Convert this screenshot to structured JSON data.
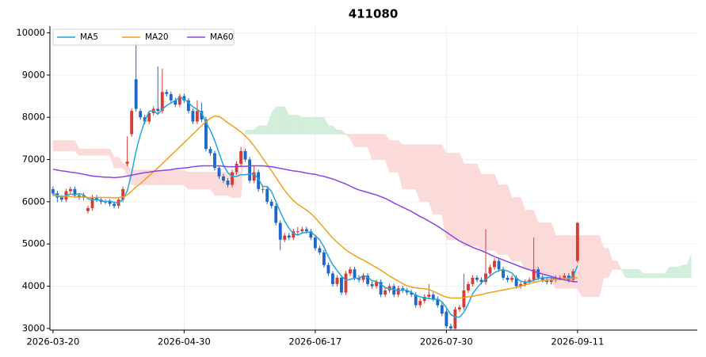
{
  "chart_data": {
    "type": "candlestick",
    "title": "411080",
    "xlim": [
      -0.7,
      147.4
    ],
    "xticks": [
      {
        "value": 0,
        "label": "2026-03-20"
      },
      {
        "value": 30,
        "label": "2026-04-30"
      },
      {
        "value": 60,
        "label": "2026-06-17"
      },
      {
        "value": 90,
        "label": "2026-07-30"
      },
      {
        "value": 120,
        "label": "2026-09-11"
      }
    ],
    "ylim": [
      2960,
      10160
    ],
    "yticks": [
      3000,
      4000,
      5000,
      6000,
      7000,
      8000,
      9000,
      10000
    ],
    "grid": true,
    "legend": "upper left",
    "up_color": "#d63c32",
    "down_color": "#2068c8",
    "open": [
      6300,
      6200,
      6100,
      6050,
      6250,
      6300,
      6150,
      6100,
      5780,
      5850,
      6100,
      6050,
      6000,
      6000,
      5950,
      5900,
      6050,
      6900,
      7600,
      8900,
      8150,
      8000,
      7900,
      8100,
      8200,
      8150,
      8600,
      8550,
      8400,
      8300,
      8500,
      8400,
      8150,
      7900,
      8150,
      7950,
      7250,
      7150,
      6800,
      6600,
      6500,
      6400,
      6700,
      6900,
      7200,
      7000,
      6500,
      6700,
      6300,
      6300,
      6000,
      5900,
      5500,
      5100,
      5200,
      5150,
      5300,
      5300,
      5350,
      5300,
      5150,
      4900,
      4800,
      4500,
      4300,
      4050,
      4200,
      3850,
      4300,
      4400,
      4200,
      4150,
      4250,
      4050,
      4000,
      4100,
      3800,
      3900,
      4000,
      3800,
      3950,
      3900,
      3850,
      3800,
      3550,
      3650,
      3750,
      3800,
      3700,
      3550,
      3400,
      3050,
      3000,
      3450,
      3500,
      3900,
      4050,
      4200,
      4150,
      4100,
      4300,
      4450,
      4600,
      4400,
      4200,
      4150,
      4200,
      4000,
      4050,
      4100,
      4150,
      4400,
      4200,
      4150,
      4100,
      4150,
      4200,
      4200,
      4250,
      4150,
      4600
    ],
    "high": [
      6360,
      6260,
      6160,
      6310,
      6360,
      6360,
      6210,
      6210,
      5910,
      6160,
      6160,
      6110,
      6060,
      6060,
      6010,
      6110,
      6360,
      7550,
      8210,
      9800,
      8210,
      8060,
      8160,
      8260,
      9200,
      9150,
      8660,
      8610,
      8460,
      8560,
      8560,
      8460,
      8210,
      8400,
      8350,
      8010,
      7310,
      7210,
      6860,
      6660,
      6560,
      6760,
      6960,
      7300,
      7260,
      7060,
      6860,
      6760,
      6400,
      6360,
      6060,
      5960,
      5560,
      5260,
      5260,
      5360,
      5400,
      5410,
      5410,
      5360,
      5210,
      4960,
      4860,
      4560,
      4360,
      4260,
      4260,
      4360,
      4460,
      4460,
      4260,
      4310,
      4310,
      4110,
      4160,
      4160,
      3960,
      4060,
      4060,
      4010,
      4010,
      3960,
      3910,
      3860,
      3710,
      3810,
      4050,
      3860,
      3760,
      3610,
      3460,
      3110,
      3510,
      3560,
      4300,
      4110,
      4260,
      4260,
      4210,
      5350,
      4510,
      4660,
      4660,
      4460,
      4260,
      4260,
      4260,
      4110,
      4160,
      4210,
      5150,
      4460,
      4260,
      4210,
      4210,
      4260,
      4260,
      4310,
      4310,
      4410,
      5520
    ],
    "low": [
      6140,
      5990,
      5990,
      5990,
      6190,
      6090,
      6040,
      6040,
      5720,
      5790,
      5990,
      5940,
      5940,
      5890,
      5840,
      5840,
      5990,
      6840,
      7540,
      8140,
      7940,
      7840,
      7840,
      8040,
      8090,
      8090,
      8490,
      8340,
      8240,
      8240,
      8340,
      8090,
      7840,
      7840,
      7890,
      7190,
      7090,
      6740,
      6540,
      6440,
      6340,
      6340,
      6640,
      6840,
      6940,
      6440,
      6440,
      6240,
      6200,
      5940,
      5840,
      5440,
      4850,
      5040,
      5090,
      5090,
      5200,
      5240,
      5240,
      5090,
      4840,
      4740,
      4440,
      4240,
      3990,
      3990,
      3790,
      3790,
      4240,
      4140,
      4090,
      4090,
      3990,
      3940,
      3940,
      3740,
      3740,
      3840,
      3740,
      3740,
      3840,
      3790,
      3740,
      3490,
      3490,
      3590,
      3690,
      3640,
      3490,
      3290,
      3000,
      2970,
      2970,
      3390,
      3440,
      3840,
      3990,
      4090,
      4040,
      4040,
      4240,
      4390,
      4340,
      4140,
      4090,
      4090,
      3940,
      3940,
      3990,
      4040,
      4090,
      4140,
      4090,
      4040,
      4040,
      4090,
      4140,
      4140,
      4090,
      4090,
      4550
    ],
    "close": [
      6200,
      6100,
      6050,
      6250,
      6300,
      6150,
      6100,
      6150,
      5850,
      6100,
      6050,
      6000,
      6000,
      5950,
      5900,
      6050,
      6300,
      6950,
      8150,
      8200,
      8000,
      7900,
      8100,
      8200,
      8150,
      8600,
      8550,
      8400,
      8300,
      8500,
      8400,
      8150,
      7900,
      8150,
      7950,
      7250,
      7150,
      6800,
      6600,
      6500,
      6400,
      6700,
      6900,
      7200,
      7000,
      6500,
      6700,
      6300,
      6300,
      6000,
      5900,
      5500,
      5100,
      5200,
      5150,
      5300,
      5300,
      5350,
      5300,
      5150,
      4900,
      4800,
      4500,
      4300,
      4050,
      4200,
      3850,
      4300,
      4400,
      4200,
      4150,
      4250,
      4050,
      4000,
      4100,
      3800,
      3900,
      4000,
      3800,
      3950,
      3900,
      3850,
      3800,
      3550,
      3650,
      3750,
      3800,
      3700,
      3550,
      3350,
      3050,
      3000,
      3450,
      3500,
      3900,
      4050,
      4200,
      4150,
      4100,
      4300,
      4450,
      4600,
      4400,
      4200,
      4150,
      4200,
      4000,
      4050,
      4100,
      4150,
      4400,
      4200,
      4150,
      4100,
      4150,
      4200,
      4200,
      4250,
      4150,
      4350,
      5500
    ],
    "series": [
      {
        "name": "MA5",
        "color": "#1ea6df",
        "values": [
          6200,
          6150,
          6100,
          6150,
          6180,
          6170,
          6190,
          6170,
          6070,
          6050,
          6050,
          6030,
          6000,
          6020,
          5980,
          5980,
          6050,
          6260,
          6680,
          7200,
          7590,
          7910,
          8140,
          8160,
          8070,
          8190,
          8280,
          8340,
          8400,
          8470,
          8430,
          8350,
          8250,
          8190,
          8110,
          7880,
          7690,
          7450,
          7150,
          6860,
          6690,
          6600,
          6600,
          6640,
          6640,
          6660,
          6660,
          6540,
          6360,
          6360,
          6240,
          6000,
          5760,
          5540,
          5370,
          5250,
          5210,
          5260,
          5280,
          5280,
          5200,
          5100,
          4930,
          4700,
          4510,
          4370,
          4240,
          4140,
          4160,
          4190,
          4180,
          4260,
          4210,
          4130,
          4110,
          4040,
          3970,
          3940,
          3920,
          3890,
          3910,
          3900,
          3860,
          3780,
          3750,
          3720,
          3710,
          3690,
          3690,
          3630,
          3490,
          3330,
          3270,
          3270,
          3380,
          3580,
          3820,
          3960,
          4080,
          4160,
          4240,
          4320,
          4370,
          4390,
          4360,
          4310,
          4190,
          4120,
          4100,
          4100,
          4140,
          4180,
          4200,
          4200,
          4200,
          4160,
          4160,
          4180,
          4190,
          4230,
          4490
        ]
      },
      {
        "name": "MA20",
        "color": "#f2a01a",
        "values": [
          6150,
          6140,
          6130,
          6130,
          6120,
          6120,
          6110,
          6110,
          6100,
          6100,
          6100,
          6100,
          6100,
          6100,
          6090,
          6100,
          6110,
          6160,
          6250,
          6350,
          6430,
          6520,
          6620,
          6710,
          6800,
          6900,
          7000,
          7100,
          7200,
          7300,
          7400,
          7500,
          7600,
          7700,
          7800,
          7900,
          7980,
          8030,
          8020,
          7950,
          7870,
          7800,
          7730,
          7650,
          7560,
          7450,
          7320,
          7180,
          7030,
          6880,
          6730,
          6580,
          6420,
          6270,
          6140,
          6030,
          5940,
          5870,
          5800,
          5720,
          5620,
          5500,
          5380,
          5260,
          5140,
          5040,
          4950,
          4860,
          4790,
          4730,
          4670,
          4620,
          4560,
          4500,
          4440,
          4380,
          4310,
          4240,
          4180,
          4120,
          4060,
          4010,
          3980,
          3960,
          3950,
          3940,
          3920,
          3880,
          3830,
          3780,
          3740,
          3720,
          3720,
          3720,
          3730,
          3750,
          3760,
          3780,
          3800,
          3830,
          3850,
          3870,
          3890,
          3910,
          3930,
          3950,
          3970,
          4000,
          4030,
          4060,
          4090,
          4110,
          4130,
          4140,
          4150,
          4160,
          4170,
          4180,
          4180,
          4190,
          4200
        ]
      },
      {
        "name": "MA60",
        "color": "#8a44e4",
        "values": [
          6770,
          6750,
          6730,
          6720,
          6700,
          6690,
          6670,
          6650,
          6630,
          6610,
          6600,
          6590,
          6580,
          6580,
          6570,
          6580,
          6590,
          6610,
          6630,
          6650,
          6670,
          6690,
          6700,
          6720,
          6730,
          6740,
          6750,
          6760,
          6780,
          6790,
          6800,
          6810,
          6830,
          6840,
          6850,
          6850,
          6850,
          6850,
          6850,
          6840,
          6830,
          6830,
          6830,
          6840,
          6840,
          6850,
          6850,
          6850,
          6850,
          6840,
          6830,
          6810,
          6790,
          6770,
          6750,
          6730,
          6720,
          6700,
          6680,
          6660,
          6650,
          6620,
          6600,
          6570,
          6540,
          6500,
          6460,
          6420,
          6370,
          6320,
          6280,
          6250,
          6220,
          6190,
          6160,
          6120,
          6080,
          6030,
          5970,
          5920,
          5870,
          5820,
          5770,
          5710,
          5650,
          5600,
          5540,
          5480,
          5420,
          5350,
          5280,
          5210,
          5140,
          5070,
          5020,
          4970,
          4920,
          4880,
          4840,
          4800,
          4750,
          4700,
          4660,
          4620,
          4580,
          4540,
          4500,
          4460,
          4420,
          4390,
          4350,
          4320,
          4290,
          4260,
          4230,
          4200,
          4170,
          4150,
          4130,
          4110,
          4100
        ]
      }
    ],
    "cloud": {
      "up_color": "#d3eedb",
      "down_color": "#fbdada",
      "span_a": [
        7200,
        7200,
        7200,
        7200,
        7200,
        7200,
        7100,
        7100,
        7100,
        7100,
        7100,
        7100,
        7100,
        7100,
        6800,
        6800,
        6800,
        6650,
        6400,
        6400,
        6400,
        6400,
        6400,
        6400,
        6400,
        6400,
        6400,
        6400,
        6400,
        6400,
        6400,
        6300,
        6300,
        6300,
        6300,
        6300,
        6300,
        6150,
        6150,
        6150,
        6150,
        6100,
        6100,
        6100,
        7700,
        7700,
        7700,
        7800,
        7800,
        7800,
        8100,
        8250,
        8250,
        8250,
        8050,
        8050,
        8050,
        8000,
        8000,
        8000,
        8000,
        8000,
        8000,
        7800,
        7800,
        7700,
        7700,
        7600,
        7500,
        7300,
        7300,
        7300,
        7300,
        7000,
        7000,
        7000,
        7000,
        6700,
        6700,
        6700,
        6300,
        6300,
        6300,
        6300,
        6000,
        6000,
        6000,
        5700,
        5700,
        5700,
        5100,
        5100,
        5100,
        5100,
        4950,
        4950,
        4950,
        4950,
        4850,
        4850,
        4850,
        4850,
        4750,
        4750,
        4750,
        4600,
        4600,
        4600,
        4400,
        4400,
        4400,
        4150,
        4150,
        4150,
        4150,
        3950,
        3950,
        3950,
        3950,
        3950,
        3950,
        3750,
        3750,
        3750,
        3750,
        3750,
        4200,
        4200,
        4400,
        4400,
        4400,
        4400,
        4400,
        4400,
        4400,
        4300,
        4300,
        4300,
        4300,
        4300,
        4300,
        4450,
        4450,
        4450,
        4500,
        4500,
        4750
      ],
      "span_b": [
        7450,
        7450,
        7450,
        7450,
        7450,
        7450,
        7250,
        7250,
        7250,
        7250,
        7250,
        7250,
        7250,
        7250,
        7050,
        7050,
        6900,
        6900,
        6750,
        6750,
        6750,
        6750,
        6750,
        6750,
        6750,
        6750,
        6750,
        6750,
        6750,
        6750,
        6750,
        6700,
        6700,
        6700,
        6700,
        6700,
        6700,
        6700,
        6700,
        6700,
        6700,
        6700,
        6700,
        6700,
        7600,
        7600,
        7600,
        7600,
        7600,
        7600,
        7600,
        7600,
        7600,
        7600,
        7600,
        7600,
        7600,
        7600,
        7600,
        7600,
        7600,
        7600,
        7600,
        7600,
        7600,
        7600,
        7600,
        7600,
        7600,
        7600,
        7600,
        7600,
        7600,
        7600,
        7600,
        7600,
        7600,
        7450,
        7450,
        7450,
        7350,
        7350,
        7350,
        7350,
        7350,
        7350,
        7350,
        7350,
        7350,
        7350,
        7150,
        7150,
        7150,
        7150,
        6900,
        6900,
        6900,
        6900,
        6650,
        6650,
        6650,
        6650,
        6400,
        6400,
        6400,
        6100,
        6100,
        6100,
        5800,
        5800,
        5800,
        5500,
        5500,
        5500,
        5500,
        5200,
        5200,
        5200,
        5200,
        5200,
        5200,
        5200,
        5200,
        5200,
        5200,
        5200,
        4900,
        4900,
        4600,
        4600,
        4400,
        4200,
        4200,
        4200,
        4200,
        4200,
        4200,
        4200,
        4200,
        4200,
        4200,
        4200,
        4200,
        4200,
        4200,
        4200,
        4200
      ]
    }
  }
}
